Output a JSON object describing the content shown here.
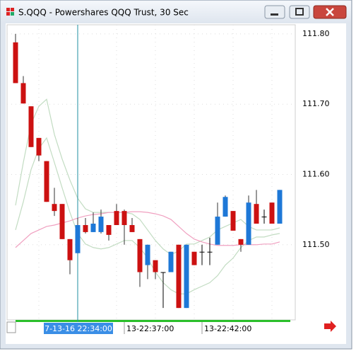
{
  "chart_data": {
    "type": "candlestick",
    "title": "S.QQQ - Powershares QQQ Trust, 30 Sec",
    "categories": [
      null,
      null,
      null,
      null,
      null,
      null,
      null,
      null,
      "7-13-16 22:34:00",
      null,
      null,
      null,
      null,
      null,
      "13-22:37:00",
      null,
      null,
      null,
      null,
      null,
      null,
      null,
      null,
      null,
      "13-22:42:00",
      null,
      null,
      null,
      null,
      null,
      null,
      null,
      null,
      null,
      null
    ],
    "open": [
      111.788,
      111.73,
      111.697,
      111.652,
      111.619,
      111.558,
      111.558,
      111.508,
      111.488,
      111.528,
      111.518,
      111.518,
      111.528,
      111.548,
      111.548,
      111.528,
      111.508,
      111.471,
      111.478,
      111.461,
      111.461,
      111.5,
      111.41,
      111.49,
      111.49,
      111.49,
      111.5,
      111.54,
      111.548,
      111.508,
      111.5,
      111.558,
      111.54,
      111.56,
      111.53
    ],
    "high": [
      111.8,
      111.74,
      111.697,
      111.652,
      111.619,
      111.581,
      111.558,
      111.508,
      111.538,
      111.538,
      111.546,
      111.55,
      111.528,
      111.558,
      111.55,
      111.538,
      111.508,
      111.5,
      111.478,
      111.461,
      111.49,
      111.5,
      111.5,
      111.49,
      111.5,
      111.51,
      111.56,
      111.57,
      111.548,
      111.508,
      111.57,
      111.578,
      111.55,
      111.56,
      111.578
    ],
    "low": [
      111.73,
      111.701,
      111.639,
      111.619,
      111.561,
      111.541,
      111.508,
      111.458,
      111.488,
      111.516,
      111.518,
      111.516,
      111.506,
      111.528,
      111.5,
      111.518,
      111.44,
      111.451,
      111.451,
      111.41,
      111.461,
      111.41,
      111.41,
      111.471,
      111.471,
      111.471,
      111.5,
      111.54,
      111.52,
      111.49,
      111.5,
      111.53,
      111.53,
      111.53,
      111.53
    ],
    "close": [
      111.73,
      111.701,
      111.639,
      111.627,
      111.561,
      111.548,
      111.508,
      111.478,
      111.528,
      111.518,
      111.53,
      111.54,
      111.514,
      111.528,
      111.528,
      111.518,
      111.461,
      111.5,
      111.461,
      111.461,
      111.49,
      111.41,
      111.5,
      111.471,
      111.49,
      111.49,
      111.54,
      111.568,
      111.52,
      111.5,
      111.56,
      111.53,
      111.54,
      111.53,
      111.578
    ],
    "up_color": "#1e78d7",
    "down_color": "#cc1111",
    "lines": [
      {
        "color": "#c2dcc2",
        "values": [
          111.556,
          111.617,
          111.672,
          111.697,
          111.707,
          111.657,
          111.622,
          111.592,
          111.566,
          111.551,
          111.546,
          111.546,
          111.546,
          111.546,
          111.546,
          111.544,
          111.536,
          111.521,
          111.506,
          111.494,
          111.486,
          111.491,
          111.501,
          111.501,
          111.506,
          111.511,
          111.521,
          111.526,
          111.531,
          111.536,
          111.526,
          111.521,
          111.521,
          111.521,
          111.524
        ]
      },
      {
        "color": "#c2dcc2",
        "values": [
          111.521,
          111.561,
          111.607,
          111.637,
          111.652,
          111.617,
          111.581,
          111.546,
          111.516,
          111.501,
          111.496,
          111.494,
          111.496,
          111.501,
          111.506,
          111.506,
          111.496,
          111.481,
          111.461,
          111.446,
          111.436,
          111.43,
          111.43,
          111.436,
          111.441,
          111.446,
          111.456,
          111.471,
          111.481,
          111.496,
          111.506,
          111.511,
          111.511,
          111.514,
          111.516
        ]
      },
      {
        "color": "#f0a0c0",
        "values": [
          111.496,
          111.506,
          111.516,
          111.521,
          111.526,
          111.528,
          111.531,
          111.534,
          111.538,
          111.541,
          111.543,
          111.544,
          111.546,
          111.546,
          111.546,
          111.547,
          111.547,
          111.546,
          111.544,
          111.541,
          111.536,
          111.526,
          111.516,
          111.508,
          111.504,
          111.501,
          111.499,
          111.499,
          111.499,
          111.5,
          111.5,
          111.5,
          111.501,
          111.501,
          111.504
        ]
      }
    ],
    "ylim": [
      111.39,
      111.81
    ],
    "yticks": [
      {
        "value": 111.5,
        "label": "111.50"
      },
      {
        "value": 111.6,
        "label": "111.60"
      },
      {
        "value": 111.7,
        "label": "111.70"
      },
      {
        "value": 111.8,
        "label": "111.80"
      }
    ],
    "grid": true
  }
}
